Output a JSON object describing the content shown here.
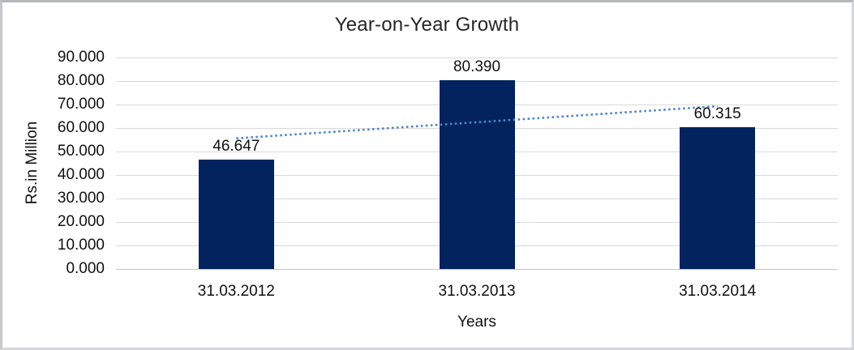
{
  "chart_data": {
    "type": "bar",
    "title": "Year-on-Year Growth",
    "xlabel": "Years",
    "ylabel": "Rs.in Million",
    "categories": [
      "31.03.2012",
      "31.03.2013",
      "31.03.2014"
    ],
    "values": [
      46.647,
      80.39,
      60.315
    ],
    "value_labels": [
      "46.647",
      "80.390",
      "60.315"
    ],
    "yticks": [
      "0.000",
      "10.000",
      "20.000",
      "30.000",
      "40.000",
      "50.000",
      "60.000",
      "70.000",
      "80.000",
      "90.000"
    ],
    "ylim": [
      0,
      90
    ],
    "grid": "horizontal-only",
    "legend_position": "none",
    "series": [
      {
        "name": "growth-bars",
        "type": "bar",
        "color": "#02235e",
        "values": [
          46.647,
          80.39,
          60.315
        ]
      },
      {
        "name": "linear-trendline",
        "type": "line",
        "style": "dotted",
        "color": "#4e86cc"
      }
    ],
    "colors": {
      "bar": "#02235e",
      "trendline": "#4e86cc",
      "gridline": "#d9d9d9",
      "axis_line": "#c2c6c8",
      "text": "#111111",
      "frame_border": "#cccfd1",
      "background": "#ffffff"
    }
  }
}
